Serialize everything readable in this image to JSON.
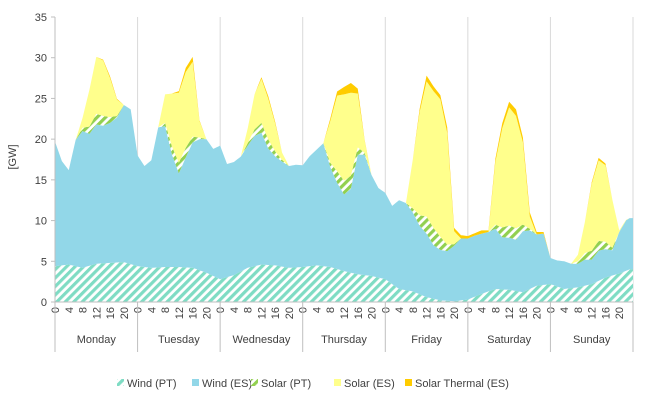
{
  "chart_data": {
    "type": "area",
    "stacked": true,
    "ylabel": "[GW]",
    "ylim": [
      0,
      35
    ],
    "yticks": [
      0,
      5,
      10,
      15,
      20,
      25,
      30,
      35
    ],
    "hour_labels": [
      "0",
      "4",
      "8",
      "12",
      "16",
      "20"
    ],
    "days": [
      "Monday",
      "Tuesday",
      "Wednesday",
      "Thursday",
      "Friday",
      "Saturday",
      "Sunday"
    ],
    "x_unit": "hour",
    "x_range": [
      0,
      168
    ],
    "grid": "vertical day separators",
    "legend_position": "bottom",
    "series": [
      {
        "name": "Wind (PT)",
        "color": "#7fdcc4",
        "pattern": "hatch",
        "points": [
          [
            0,
            4.4
          ],
          [
            4,
            4.6
          ],
          [
            8,
            4.2
          ],
          [
            12,
            4.7
          ],
          [
            16,
            4.8
          ],
          [
            20,
            4.9
          ],
          [
            24,
            4.4
          ],
          [
            28,
            4.2
          ],
          [
            32,
            4.3
          ],
          [
            36,
            4.3
          ],
          [
            40,
            4.2
          ],
          [
            44,
            3.6
          ],
          [
            48,
            2.8
          ],
          [
            52,
            3.3
          ],
          [
            56,
            4.2
          ],
          [
            60,
            4.6
          ],
          [
            64,
            4.5
          ],
          [
            68,
            4.2
          ],
          [
            72,
            4.3
          ],
          [
            76,
            4.5
          ],
          [
            80,
            4.3
          ],
          [
            84,
            3.8
          ],
          [
            88,
            3.4
          ],
          [
            92,
            3.2
          ],
          [
            96,
            2.8
          ],
          [
            100,
            1.6
          ],
          [
            104,
            1.3
          ],
          [
            108,
            0.6
          ],
          [
            112,
            0.2
          ],
          [
            116,
            0.1
          ],
          [
            120,
            0.3
          ],
          [
            124,
            1
          ],
          [
            128,
            1.6
          ],
          [
            132,
            1.5
          ],
          [
            136,
            1.2
          ],
          [
            140,
            2
          ],
          [
            144,
            2.2
          ],
          [
            148,
            1.6
          ],
          [
            152,
            1.8
          ],
          [
            156,
            2.2
          ],
          [
            160,
            3
          ],
          [
            164,
            3.5
          ],
          [
            167,
            4
          ]
        ]
      },
      {
        "name": "Wind (ES)",
        "color": "#92d7e8",
        "pattern": "solid",
        "points": [
          [
            0,
            15.3
          ],
          [
            2,
            12.8
          ],
          [
            4,
            11.6
          ],
          [
            6,
            15.5
          ],
          [
            8,
            16.8
          ],
          [
            10,
            16.2
          ],
          [
            12,
            17.1
          ],
          [
            14,
            16.9
          ],
          [
            16,
            17.2
          ],
          [
            18,
            17.8
          ],
          [
            20,
            19.3
          ],
          [
            22,
            19
          ],
          [
            24,
            13.6
          ],
          [
            26,
            12.4
          ],
          [
            28,
            13.2
          ],
          [
            30,
            17.2
          ],
          [
            32,
            17.3
          ],
          [
            34,
            13.8
          ],
          [
            36,
            11.5
          ],
          [
            38,
            13.5
          ],
          [
            40,
            15.4
          ],
          [
            42,
            16.1
          ],
          [
            44,
            16.4
          ],
          [
            46,
            15.6
          ],
          [
            48,
            16.4
          ],
          [
            50,
            13.9
          ],
          [
            52,
            13.9
          ],
          [
            54,
            14.1
          ],
          [
            56,
            15
          ],
          [
            58,
            16
          ],
          [
            60,
            16.2
          ],
          [
            62,
            14.3
          ],
          [
            64,
            13.4
          ],
          [
            66,
            12.9
          ],
          [
            68,
            12.5
          ],
          [
            70,
            12.6
          ],
          [
            72,
            12.5
          ],
          [
            74,
            13.5
          ],
          [
            76,
            14.2
          ],
          [
            78,
            15.1
          ],
          [
            80,
            12.3
          ],
          [
            82,
            10.6
          ],
          [
            84,
            9.4
          ],
          [
            86,
            10.3
          ],
          [
            88,
            14.7
          ],
          [
            90,
            14.8
          ],
          [
            92,
            12.4
          ],
          [
            94,
            11
          ],
          [
            96,
            10.6
          ],
          [
            98,
            9.6
          ],
          [
            100,
            10.9
          ],
          [
            102,
            10.7
          ],
          [
            104,
            9.7
          ],
          [
            106,
            8.4
          ],
          [
            108,
            7.8
          ],
          [
            110,
            6.6
          ],
          [
            112,
            6.2
          ],
          [
            114,
            6.1
          ],
          [
            116,
            6.8
          ],
          [
            118,
            7.6
          ],
          [
            120,
            7.5
          ],
          [
            122,
            7.5
          ],
          [
            124,
            7.4
          ],
          [
            126,
            7.3
          ],
          [
            128,
            7.4
          ],
          [
            130,
            6.4
          ],
          [
            132,
            6.4
          ],
          [
            134,
            6.3
          ],
          [
            136,
            7.5
          ],
          [
            138,
            7.2
          ],
          [
            140,
            6.3
          ],
          [
            142,
            6.3
          ],
          [
            144,
            3.2
          ],
          [
            146,
            3.2
          ],
          [
            148,
            3.4
          ],
          [
            150,
            3
          ],
          [
            152,
            2.9
          ],
          [
            154,
            3.2
          ],
          [
            156,
            3
          ],
          [
            158,
            3.7
          ],
          [
            160,
            3.5
          ],
          [
            162,
            3.1
          ],
          [
            164,
            5.1
          ],
          [
            166,
            6.2
          ],
          [
            167,
            6.3
          ]
        ]
      },
      {
        "name": "Solar (PT)",
        "color": "#92d050",
        "pattern": "hatch",
        "points": [
          [
            0,
            0
          ],
          [
            6,
            0
          ],
          [
            8,
            0.4
          ],
          [
            10,
            0.9
          ],
          [
            12,
            1.3
          ],
          [
            14,
            1.2
          ],
          [
            16,
            0.7
          ],
          [
            18,
            0.2
          ],
          [
            20,
            0
          ],
          [
            30,
            0
          ],
          [
            32,
            0.4
          ],
          [
            34,
            1
          ],
          [
            36,
            1.3
          ],
          [
            38,
            1.2
          ],
          [
            40,
            0.7
          ],
          [
            42,
            0.2
          ],
          [
            44,
            0
          ],
          [
            54,
            0
          ],
          [
            56,
            0.3
          ],
          [
            58,
            0.8
          ],
          [
            60,
            1.2
          ],
          [
            62,
            1.1
          ],
          [
            64,
            0.6
          ],
          [
            66,
            0.2
          ],
          [
            68,
            0
          ],
          [
            78,
            0
          ],
          [
            80,
            0.5
          ],
          [
            82,
            1.4
          ],
          [
            84,
            1.7
          ],
          [
            86,
            1.6
          ],
          [
            88,
            0.9
          ],
          [
            90,
            0.2
          ],
          [
            92,
            0
          ],
          [
            102,
            0
          ],
          [
            104,
            0.5
          ],
          [
            106,
            1.3
          ],
          [
            108,
            2.1
          ],
          [
            110,
            2.1
          ],
          [
            112,
            1.6
          ],
          [
            114,
            0.8
          ],
          [
            116,
            0.2
          ],
          [
            118,
            0
          ],
          [
            126,
            0
          ],
          [
            128,
            0.5
          ],
          [
            130,
            1.2
          ],
          [
            132,
            1.5
          ],
          [
            134,
            1.4
          ],
          [
            136,
            0.8
          ],
          [
            138,
            0.2
          ],
          [
            140,
            0
          ],
          [
            150,
            0
          ],
          [
            152,
            0.3
          ],
          [
            154,
            0.8
          ],
          [
            156,
            1.1
          ],
          [
            158,
            1.2
          ],
          [
            160,
            0.9
          ],
          [
            162,
            0.3
          ],
          [
            164,
            0
          ],
          [
            167,
            0
          ]
        ]
      },
      {
        "name": "Solar (ES)",
        "color": "#ffff8c",
        "pattern": "solid",
        "points": [
          [
            0,
            0
          ],
          [
            6,
            0
          ],
          [
            8,
            1.2
          ],
          [
            10,
            4.5
          ],
          [
            12,
            7
          ],
          [
            14,
            6.8
          ],
          [
            16,
            4.8
          ],
          [
            18,
            2
          ],
          [
            20,
            0
          ],
          [
            30,
            0
          ],
          [
            32,
            3.5
          ],
          [
            34,
            6.5
          ],
          [
            36,
            8.6
          ],
          [
            38,
            9.3
          ],
          [
            40,
            9.2
          ],
          [
            42,
            2
          ],
          [
            44,
            0
          ],
          [
            54,
            0
          ],
          [
            56,
            1.8
          ],
          [
            58,
            4.3
          ],
          [
            60,
            5.4
          ],
          [
            62,
            5
          ],
          [
            64,
            3.4
          ],
          [
            66,
            0.9
          ],
          [
            68,
            0
          ],
          [
            78,
            0
          ],
          [
            80,
            5.1
          ],
          [
            82,
            9.3
          ],
          [
            84,
            10.6
          ],
          [
            86,
            10.2
          ],
          [
            88,
            6.6
          ],
          [
            90,
            1.5
          ],
          [
            92,
            0
          ],
          [
            102,
            0
          ],
          [
            104,
            6
          ],
          [
            106,
            12.7
          ],
          [
            108,
            16.6
          ],
          [
            110,
            16.8
          ],
          [
            112,
            16.9
          ],
          [
            114,
            13.7
          ],
          [
            116,
            1.6
          ],
          [
            118,
            0
          ],
          [
            126,
            0
          ],
          [
            128,
            7.7
          ],
          [
            130,
            12.2
          ],
          [
            132,
            14.5
          ],
          [
            134,
            13.8
          ],
          [
            136,
            10.1
          ],
          [
            138,
            1.5
          ],
          [
            140,
            0
          ],
          [
            150,
            0
          ],
          [
            152,
            0.8
          ],
          [
            154,
            3.8
          ],
          [
            156,
            8.2
          ],
          [
            158,
            9.9
          ],
          [
            160,
            9.4
          ],
          [
            162,
            5.9
          ],
          [
            164,
            0.2
          ],
          [
            167,
            0
          ]
        ]
      },
      {
        "name": "Solar Thermal (ES)",
        "color": "#ffcc00",
        "pattern": "solid",
        "points": [
          [
            0,
            0
          ],
          [
            12,
            0
          ],
          [
            14,
            0.1
          ],
          [
            16,
            0.2
          ],
          [
            18,
            0.1
          ],
          [
            20,
            0
          ],
          [
            34,
            0
          ],
          [
            36,
            0.2
          ],
          [
            38,
            0.5
          ],
          [
            40,
            0.6
          ],
          [
            42,
            0.1
          ],
          [
            44,
            0
          ],
          [
            58,
            0
          ],
          [
            60,
            0.2
          ],
          [
            62,
            0.3
          ],
          [
            64,
            0.2
          ],
          [
            66,
            0
          ],
          [
            78,
            0
          ],
          [
            80,
            0.3
          ],
          [
            82,
            0.5
          ],
          [
            84,
            0.9
          ],
          [
            86,
            1.2
          ],
          [
            88,
            0.6
          ],
          [
            90,
            0.1
          ],
          [
            92,
            0
          ],
          [
            104,
            0
          ],
          [
            106,
            0.4
          ],
          [
            108,
            0.7
          ],
          [
            110,
            0.6
          ],
          [
            112,
            0.5
          ],
          [
            114,
            0.7
          ],
          [
            116,
            0.4
          ],
          [
            118,
            0.4
          ],
          [
            120,
            0.3
          ],
          [
            122,
            0.3
          ],
          [
            124,
            0.4
          ],
          [
            126,
            0.2
          ],
          [
            128,
            0.4
          ],
          [
            130,
            0.6
          ],
          [
            132,
            0.7
          ],
          [
            134,
            0.8
          ],
          [
            136,
            0.6
          ],
          [
            138,
            0.5
          ],
          [
            140,
            0.3
          ],
          [
            142,
            0.2
          ],
          [
            144,
            0
          ],
          [
            154,
            0
          ],
          [
            156,
            0.2
          ],
          [
            158,
            0.3
          ],
          [
            160,
            0.2
          ],
          [
            162,
            0
          ],
          [
            167,
            0
          ]
        ]
      }
    ]
  }
}
